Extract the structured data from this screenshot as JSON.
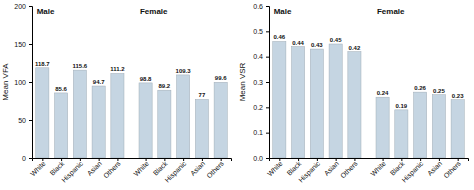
{
  "chart_data": [
    {
      "type": "bar",
      "ylabel": "Mean VFA",
      "annotations": [
        "Male",
        "Female"
      ],
      "categories": [
        "White",
        "Black",
        "Hispanic",
        "Asian",
        "Others",
        "White",
        "Black",
        "Hispanic",
        "Asian",
        "Others"
      ],
      "values": [
        118.7,
        85.6,
        115.6,
        94.7,
        111.2,
        98.8,
        89.2,
        109.3,
        77,
        99.6
      ],
      "color": "#c5d5e2",
      "ylim": [
        0,
        200
      ],
      "yticks": [
        0,
        50,
        100,
        150,
        200
      ],
      "grid": false,
      "data_labels": true
    },
    {
      "type": "bar",
      "ylabel": "Mean VSR",
      "annotations": [
        "Male",
        "Female"
      ],
      "categories": [
        "White",
        "Black",
        "Hispanic",
        "Asian",
        "Others",
        "White",
        "Black",
        "Hispanic",
        "Asian",
        "Others"
      ],
      "values": [
        0.46,
        0.44,
        0.43,
        0.45,
        0.42,
        0.24,
        0.19,
        0.26,
        0.25,
        0.23
      ],
      "color": "#c5d5e2",
      "ylim": [
        0,
        0.6
      ],
      "yticks": [
        {
          "value": 0,
          "label": "0.0"
        },
        0.1,
        0.2,
        0.3,
        0.4,
        0.5,
        0.6
      ],
      "grid": false,
      "data_labels": true
    }
  ]
}
